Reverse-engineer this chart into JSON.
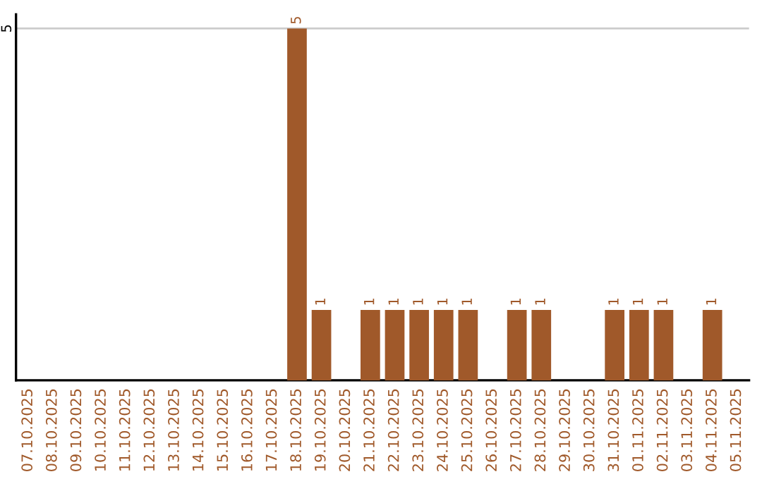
{
  "chart_data": {
    "type": "bar",
    "categories": [
      "07.10.2025",
      "08.10.2025",
      "09.10.2025",
      "10.10.2025",
      "11.10.2025",
      "12.10.2025",
      "13.10.2025",
      "14.10.2025",
      "15.10.2025",
      "16.10.2025",
      "17.10.2025",
      "18.10.2025",
      "19.10.2025",
      "20.10.2025",
      "21.10.2025",
      "22.10.2025",
      "23.10.2025",
      "24.10.2025",
      "25.10.2025",
      "26.10.2025",
      "27.10.2025",
      "28.10.2025",
      "29.10.2025",
      "30.10.2025",
      "31.10.2025",
      "01.11.2025",
      "02.11.2025",
      "03.11.2025",
      "04.11.2025",
      "05.11.2025"
    ],
    "values": [
      0,
      0,
      0,
      0,
      0,
      0,
      0,
      0,
      0,
      0,
      0,
      5,
      1,
      0,
      1,
      1,
      1,
      1,
      1,
      0,
      1,
      1,
      0,
      0,
      1,
      1,
      1,
      0,
      1,
      0
    ],
    "value_labels": [
      null,
      null,
      null,
      null,
      null,
      null,
      null,
      null,
      null,
      null,
      null,
      "5",
      "1",
      null,
      "1",
      "1",
      "1",
      "1",
      "1",
      null,
      "1",
      "1",
      null,
      null,
      "1",
      "1",
      "1",
      null,
      "1",
      null
    ],
    "color": "#a0592a",
    "ylim": [
      0,
      5.2
    ],
    "yticks": [
      5
    ],
    "grid": "y",
    "legend": false
  }
}
